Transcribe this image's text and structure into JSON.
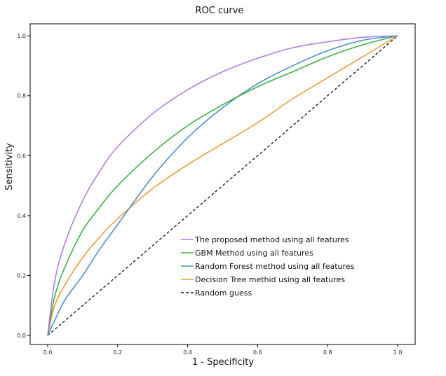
{
  "chart_data": {
    "type": "line",
    "title": "ROC curve",
    "xlabel": "1 - Specificity",
    "ylabel": "Sensitivity",
    "xlim": [
      -0.05,
      1.05
    ],
    "ylim": [
      -0.03,
      1.04
    ],
    "xticks": [
      "0.0",
      "0.2",
      "0.4",
      "0.6",
      "0.8",
      "1.0"
    ],
    "yticks": [
      "0.0",
      "0.2",
      "0.4",
      "0.6",
      "0.8",
      "1.0"
    ],
    "grid": false,
    "legend_position": "lower-right",
    "series": [
      {
        "name": "The proposed method using all features",
        "color": "#b07fe0",
        "dash": "solid",
        "x": [
          0,
          0.02,
          0.05,
          0.1,
          0.15,
          0.2,
          0.3,
          0.4,
          0.5,
          0.6,
          0.7,
          0.8,
          0.9,
          1.0
        ],
        "y": [
          0,
          0.18,
          0.31,
          0.45,
          0.55,
          0.63,
          0.74,
          0.82,
          0.88,
          0.925,
          0.96,
          0.98,
          0.995,
          1.0
        ]
      },
      {
        "name": "GBM Method using all features",
        "color": "#3cb043",
        "dash": "solid",
        "x": [
          0,
          0.02,
          0.05,
          0.1,
          0.15,
          0.2,
          0.3,
          0.4,
          0.5,
          0.6,
          0.7,
          0.8,
          0.9,
          1.0
        ],
        "y": [
          0,
          0.13,
          0.23,
          0.35,
          0.43,
          0.5,
          0.61,
          0.7,
          0.77,
          0.83,
          0.88,
          0.93,
          0.97,
          1.0
        ]
      },
      {
        "name": "Random Forest method using all features",
        "color": "#4c8fc8",
        "dash": "solid",
        "x": [
          0,
          0.02,
          0.05,
          0.1,
          0.15,
          0.2,
          0.3,
          0.4,
          0.5,
          0.6,
          0.7,
          0.8,
          0.9,
          1.0
        ],
        "y": [
          0,
          0.05,
          0.12,
          0.2,
          0.29,
          0.37,
          0.53,
          0.66,
          0.76,
          0.84,
          0.9,
          0.95,
          0.985,
          1.0
        ]
      },
      {
        "name": "Decision Tree methid using all features",
        "color": "#f39a3d",
        "dash": "solid",
        "x": [
          0,
          0.02,
          0.05,
          0.1,
          0.15,
          0.2,
          0.3,
          0.4,
          0.5,
          0.6,
          0.7,
          0.8,
          0.9,
          1.0
        ],
        "y": [
          0,
          0.1,
          0.17,
          0.26,
          0.33,
          0.39,
          0.49,
          0.57,
          0.64,
          0.71,
          0.79,
          0.86,
          0.93,
          1.0
        ]
      },
      {
        "name": "Random guess",
        "color": "#111111",
        "dash": "dashed",
        "x": [
          0,
          1
        ],
        "y": [
          0,
          1
        ]
      }
    ]
  }
}
